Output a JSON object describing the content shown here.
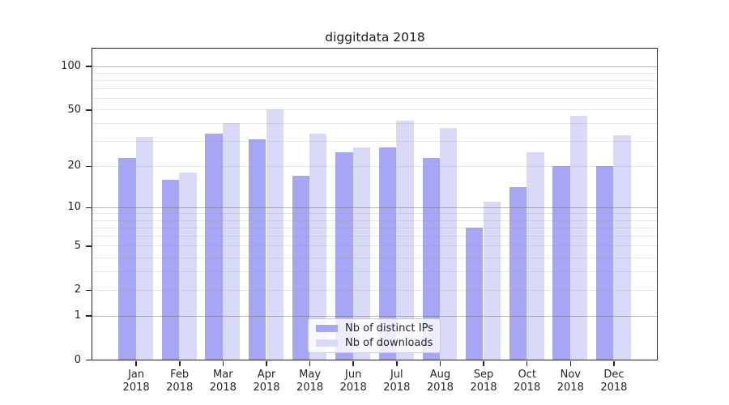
{
  "title": "diggitdata 2018",
  "chart_data": {
    "type": "bar",
    "title": "diggitdata 2018",
    "categories": [
      "Jan",
      "Feb",
      "Mar",
      "Apr",
      "May",
      "Jun",
      "Jul",
      "Aug",
      "Sep",
      "Oct",
      "Nov",
      "Dec"
    ],
    "x_axis": {
      "tick_year": "2018"
    },
    "series": [
      {
        "name": "Nb of distinct IPs",
        "color": "#a6a6f4",
        "values": [
          23,
          16,
          34,
          31,
          17,
          25,
          27,
          23,
          7,
          14,
          20,
          20
        ]
      },
      {
        "name": "Nb of downloads",
        "color": "#d9d9f8",
        "values": [
          32,
          18,
          40,
          50,
          34,
          27,
          42,
          37,
          11,
          25,
          45,
          33
        ]
      }
    ],
    "y_axis": {
      "scale": "log1p",
      "min": 0,
      "max": 132,
      "ticks": [
        0,
        1,
        2,
        5,
        10,
        20,
        50,
        100
      ],
      "major_gridlines": [
        1,
        10,
        100
      ],
      "minor_gridlines": [
        2,
        3,
        4,
        5,
        6,
        7,
        8,
        9,
        20,
        30,
        40,
        50,
        60,
        70,
        80,
        90
      ]
    },
    "bar_width_fraction": 0.4,
    "grid": true,
    "legend_position": "lower center"
  },
  "colors": {
    "spine": "#262626",
    "tick_label": "#262626",
    "major_grid": "#b0b0b0",
    "minor_grid": "#e6e6e6",
    "legend_border": "#cccccc",
    "background": "#ffffff"
  }
}
